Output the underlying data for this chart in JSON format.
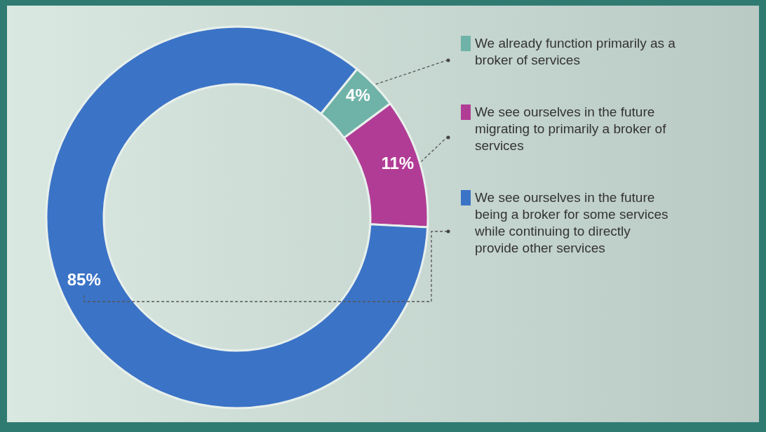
{
  "chart_data": {
    "type": "donut",
    "categories": [
      "We already function primarily as a broker of services",
      "We see ourselves in the future migrating to primarily a broker of services",
      "We see ourselves in the future being a broker for some services while continuing to directly provide other services"
    ],
    "values": [
      4,
      11,
      85
    ],
    "colors": [
      "#6fb3a8",
      "#b13c95",
      "#3b73c6"
    ],
    "value_labels": [
      "4%",
      "11%",
      "85%"
    ],
    "legend": "right"
  }
}
